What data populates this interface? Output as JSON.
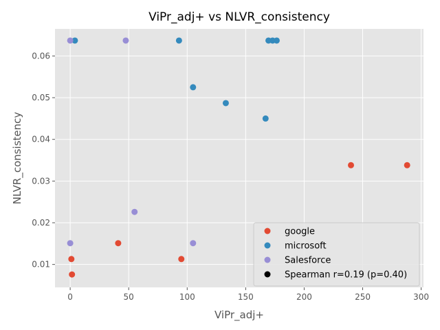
{
  "chart_data": {
    "type": "scatter",
    "title": "ViPr_adj+ vs NLVR_consistency",
    "xlabel": "ViPr_adj+",
    "ylabel": "NLVR_consistency",
    "xlim": [
      -13,
      302
    ],
    "ylim": [
      0.0045,
      0.0665
    ],
    "x_ticks": [
      0,
      50,
      100,
      150,
      200,
      250,
      300
    ],
    "y_ticks": [
      0.01,
      0.02,
      0.03,
      0.04,
      0.05,
      0.06
    ],
    "grid": true,
    "legend_position": "lower-right",
    "series": [
      {
        "name": "google",
        "color": "#E24A33",
        "points": [
          {
            "x": 240,
            "y": 0.0338
          },
          {
            "x": 288,
            "y": 0.0338
          },
          {
            "x": 41,
            "y": 0.0151
          },
          {
            "x": 1,
            "y": 0.0113
          },
          {
            "x": 95,
            "y": 0.0113
          },
          {
            "x": 1.5,
            "y": 0.0076
          }
        ]
      },
      {
        "name": "microsoft",
        "color": "#348ABD",
        "points": [
          {
            "x": 4,
            "y": 0.0637
          },
          {
            "x": 93,
            "y": 0.0637
          },
          {
            "x": 169.5,
            "y": 0.0637
          },
          {
            "x": 173,
            "y": 0.0637
          },
          {
            "x": 176.5,
            "y": 0.0637
          },
          {
            "x": 105,
            "y": 0.0525
          },
          {
            "x": 133,
            "y": 0.0487
          },
          {
            "x": 167,
            "y": 0.045
          }
        ]
      },
      {
        "name": "Salesforce",
        "color": "#988ED5",
        "points": [
          {
            "x": 0,
            "y": 0.0637
          },
          {
            "x": 47.5,
            "y": 0.0637
          },
          {
            "x": 55,
            "y": 0.0226
          },
          {
            "x": 0,
            "y": 0.0151
          },
          {
            "x": 105,
            "y": 0.0151
          }
        ]
      }
    ],
    "annotation": {
      "label": "Spearman r=0.19 (p=0.40)",
      "color": "#000000"
    }
  }
}
